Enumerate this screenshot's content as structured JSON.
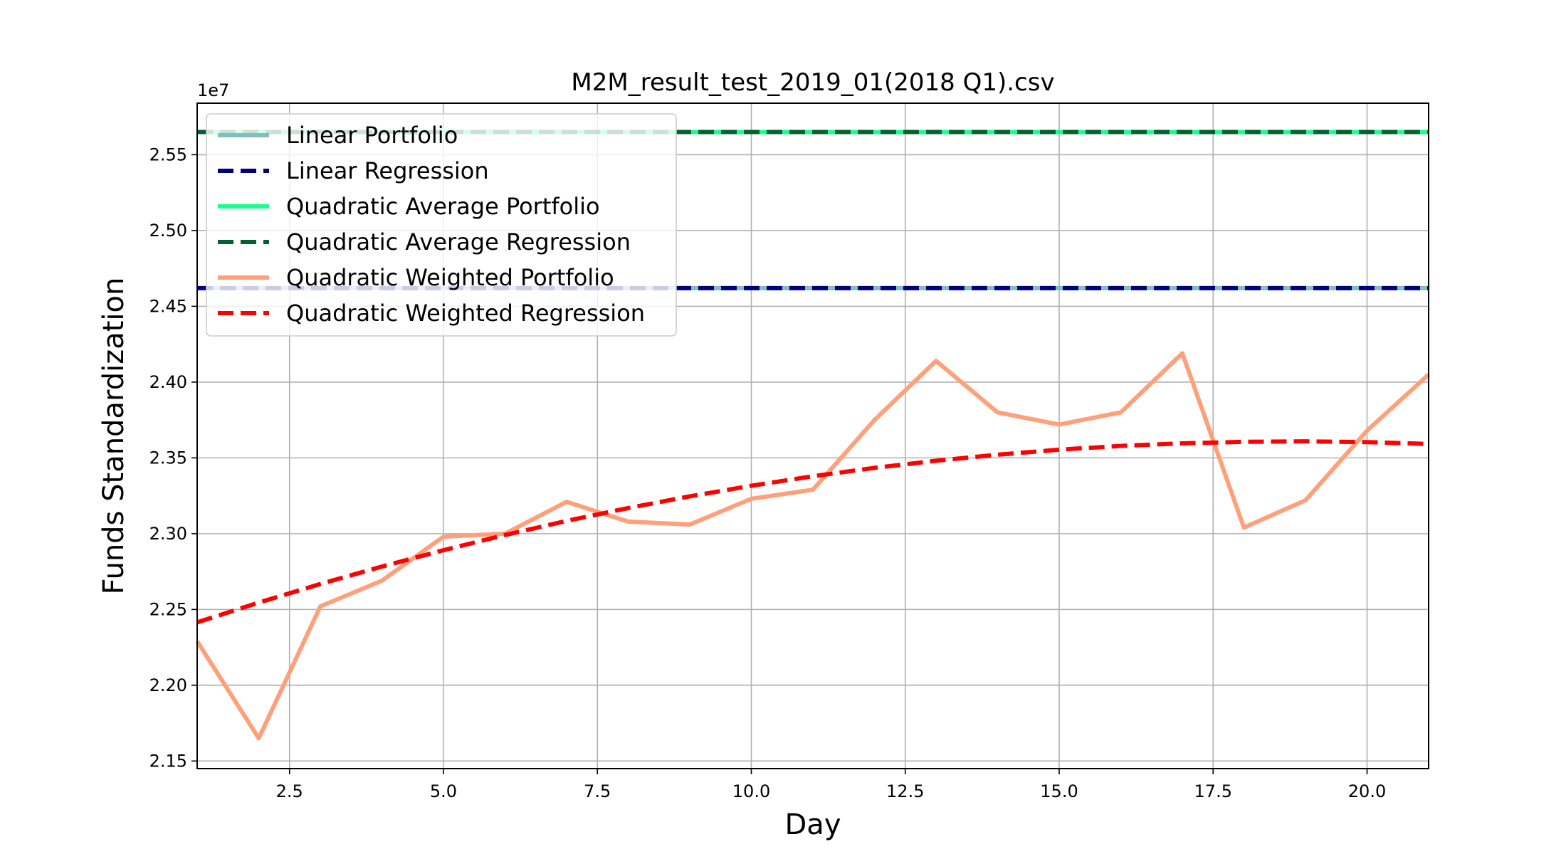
{
  "chart_data": {
    "type": "line",
    "title": "M2M_result_test_2019_01(2018 Q1).csv",
    "xlabel": "Day",
    "ylabel": "Funds Standardization",
    "offset_label": "1e7",
    "xlim": [
      1,
      21
    ],
    "ylim": [
      2.145,
      2.584
    ],
    "y_scale": 10000000.0,
    "x_ticks": [
      2.5,
      5.0,
      7.5,
      10.0,
      12.5,
      15.0,
      17.5,
      20.0
    ],
    "x_tick_labels": [
      "2.5",
      "5.0",
      "7.5",
      "10.0",
      "12.5",
      "15.0",
      "17.5",
      "20.0"
    ],
    "y_ticks": [
      2.15,
      2.2,
      2.25,
      2.3,
      2.35,
      2.4,
      2.45,
      2.5,
      2.55
    ],
    "y_tick_labels": [
      "2.15",
      "2.20",
      "2.25",
      "2.30",
      "2.35",
      "2.40",
      "2.45",
      "2.50",
      "2.55"
    ],
    "grid": true,
    "legend_position": "top-left",
    "x": [
      1,
      2,
      3,
      4,
      5,
      6,
      7,
      8,
      9,
      10,
      11,
      12,
      13,
      14,
      15,
      16,
      17,
      18,
      19,
      20,
      21
    ],
    "series": [
      {
        "name": "Linear Portfolio",
        "color": "#7fbfbf",
        "dash": "solid",
        "opacity": 1,
        "values": [
          2.462,
          2.462,
          2.462,
          2.462,
          2.462,
          2.462,
          2.462,
          2.462,
          2.462,
          2.462,
          2.462,
          2.462,
          2.462,
          2.462,
          2.462,
          2.462,
          2.462,
          2.462,
          2.462,
          2.462,
          2.462
        ]
      },
      {
        "name": "Linear Regression",
        "color": "#000080",
        "dash": "dashed",
        "opacity": 1,
        "values": [
          2.462,
          2.462,
          2.462,
          2.462,
          2.462,
          2.462,
          2.462,
          2.462,
          2.462,
          2.462,
          2.462,
          2.462,
          2.462,
          2.462,
          2.462,
          2.462,
          2.462,
          2.462,
          2.462,
          2.462,
          2.462
        ]
      },
      {
        "name": "Quadratic Average Portfolio",
        "color": "#00ff7f",
        "dash": "solid",
        "opacity": 0.9,
        "values": [
          2.565,
          2.565,
          2.565,
          2.565,
          2.565,
          2.565,
          2.565,
          2.565,
          2.565,
          2.565,
          2.565,
          2.565,
          2.565,
          2.565,
          2.565,
          2.565,
          2.565,
          2.565,
          2.565,
          2.565,
          2.565
        ]
      },
      {
        "name": "Quadratic Average Regression",
        "color": "#006030",
        "dash": "dashed",
        "opacity": 1,
        "values": [
          2.565,
          2.565,
          2.565,
          2.565,
          2.565,
          2.565,
          2.565,
          2.565,
          2.565,
          2.565,
          2.565,
          2.565,
          2.565,
          2.565,
          2.565,
          2.565,
          2.565,
          2.565,
          2.565,
          2.565,
          2.565
        ]
      },
      {
        "name": "Quadratic Weighted Portfolio",
        "color": "#ffa07a",
        "dash": "solid",
        "opacity": 1,
        "values": [
          2.229,
          2.165,
          2.252,
          2.269,
          2.298,
          2.3,
          2.321,
          2.308,
          2.306,
          2.323,
          2.329,
          2.375,
          2.414,
          2.38,
          2.372,
          2.38,
          2.419,
          2.304,
          2.322,
          2.368,
          2.405
        ]
      },
      {
        "name": "Quadratic Weighted Regression",
        "color": "#ff0000",
        "dash": "dashed",
        "opacity": 1,
        "values": [
          2.2415,
          2.2545,
          2.2668,
          2.2783,
          2.2891,
          2.2991,
          2.3084,
          2.3169,
          2.3246,
          2.3316,
          2.3379,
          2.3434,
          2.3481,
          2.3521,
          2.3554,
          2.3579,
          2.3596,
          2.3606,
          2.3609,
          2.3604,
          2.3592
        ]
      }
    ]
  }
}
